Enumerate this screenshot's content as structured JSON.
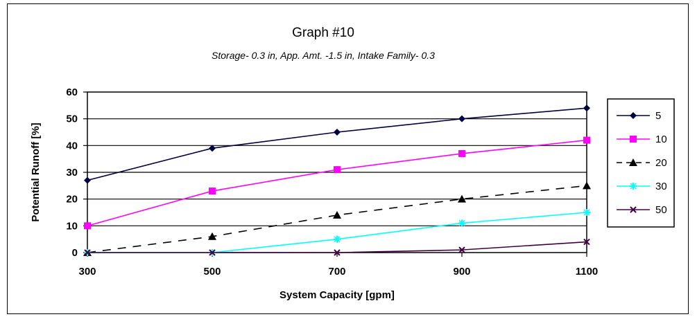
{
  "chart_data": {
    "type": "line",
    "title": "Graph #10",
    "subtitle": "Storage- 0.3 in, App. Amt. -1.5 in, Intake Family- 0.3",
    "xlabel": "System Capacity [gpm]",
    "ylabel": "Potential Runoff [%]",
    "x": [
      300,
      500,
      700,
      900,
      1100
    ],
    "xlim": [
      300,
      1100
    ],
    "ylim": [
      0,
      60
    ],
    "yticks": [
      0,
      10,
      20,
      30,
      40,
      50,
      60
    ],
    "xtick_labels": [
      "300",
      "500",
      "700",
      "900",
      "1100"
    ],
    "ytick_labels": [
      "0",
      "10",
      "20",
      "30",
      "40",
      "50",
      "60"
    ],
    "grid": "horizontal",
    "legend_position": "right",
    "series": [
      {
        "name": "5",
        "values": [
          27,
          39,
          45,
          50,
          54
        ],
        "color": "#000040",
        "marker": "diamond",
        "dash": "solid"
      },
      {
        "name": "10",
        "values": [
          10,
          23,
          31,
          37,
          42
        ],
        "color": "#ff00ff",
        "marker": "square",
        "dash": "solid"
      },
      {
        "name": "20",
        "values": [
          0,
          6,
          14,
          20,
          25
        ],
        "color": "#000000",
        "marker": "triangle",
        "dash": "dashed"
      },
      {
        "name": "30",
        "values": [
          0,
          0,
          5,
          11,
          15
        ],
        "color": "#00ffff",
        "marker": "star",
        "dash": "solid"
      },
      {
        "name": "50",
        "values": [
          0,
          0,
          0,
          1,
          4
        ],
        "color": "#400040",
        "marker": "x",
        "dash": "solid"
      }
    ]
  }
}
